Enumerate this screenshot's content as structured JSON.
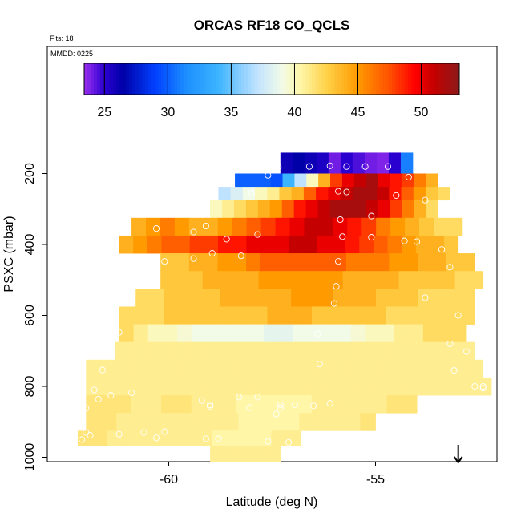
{
  "chart_data": {
    "type": "heatmap",
    "title": "ORCAS RF18 CO_QCLS",
    "flights_label": "Flts: 18",
    "date_label": "MMDD: 0225",
    "xlabel": "Latitude (deg N)",
    "ylabel": "PSXC (mbar)",
    "xlim": [
      -63,
      -52
    ],
    "ylim": [
      1000,
      100
    ],
    "x_ticks": [
      -60,
      -55
    ],
    "y_ticks": [
      200,
      400,
      600,
      800,
      1000
    ],
    "colorbar": {
      "range": [
        23.4,
        53
      ],
      "ticks": [
        25,
        30,
        35,
        40,
        45,
        50
      ],
      "stops": [
        {
          "v": 23.4,
          "c": "#9b2ff0"
        },
        {
          "v": 25,
          "c": "#2a00d0"
        },
        {
          "v": 26.5,
          "c": "#0000a8"
        },
        {
          "v": 29,
          "c": "#0040ff"
        },
        {
          "v": 31.5,
          "c": "#1e90ff"
        },
        {
          "v": 34,
          "c": "#3cb4ff"
        },
        {
          "v": 37,
          "c": "#bfe2ff"
        },
        {
          "v": 39,
          "c": "#f2fbe8"
        },
        {
          "v": 40.5,
          "c": "#fff6a8"
        },
        {
          "v": 42.5,
          "c": "#ffd24a"
        },
        {
          "v": 45,
          "c": "#ff9a00"
        },
        {
          "v": 47.5,
          "c": "#ff5000"
        },
        {
          "v": 49.5,
          "c": "#ff0000"
        },
        {
          "v": 51,
          "c": "#c40000"
        },
        {
          "v": 53,
          "c": "#8b1a1a"
        }
      ]
    },
    "arrow_latitude": -53.0,
    "bins": [
      {
        "p": 175,
        "lat_min": -57.3,
        "lat_max": -54.1,
        "values": [
          26,
          26.5,
          26,
          25.5,
          24,
          25,
          24.5,
          24,
          23.8,
          25,
          31
        ]
      },
      {
        "p": 225,
        "lat_min": -58.4,
        "lat_max": -53.5,
        "values": [
          30,
          30,
          30,
          29.5,
          34,
          37,
          40,
          44,
          48,
          50,
          51,
          52,
          50,
          49,
          48,
          46,
          44
        ]
      },
      {
        "p": 250,
        "lat_min": -58.8,
        "lat_max": -53.2,
        "values": [
          37,
          38,
          39,
          40,
          41,
          43,
          44,
          47,
          49,
          50,
          51,
          52,
          52,
          51,
          49,
          47,
          45,
          43,
          42
        ]
      },
      {
        "p": 300,
        "lat_min": -59.0,
        "lat_max": -53.5,
        "values": [
          40,
          41,
          42,
          43,
          44,
          45,
          47,
          49,
          50,
          51,
          52,
          52,
          52,
          51,
          50,
          48,
          46,
          44,
          42
        ]
      },
      {
        "p": 350,
        "lat_min": -60.9,
        "lat_max": -52.9,
        "values": [
          44,
          45,
          46,
          45,
          44,
          44,
          45,
          46,
          47,
          48,
          49,
          50,
          51,
          51,
          50,
          49,
          48,
          46,
          45,
          44,
          43,
          42,
          42
        ]
      },
      {
        "p": 400,
        "lat_min": -61.2,
        "lat_max": -53.0,
        "values": [
          44,
          45,
          46,
          47,
          47,
          48,
          48,
          49,
          49,
          50,
          50,
          50,
          51,
          51,
          50,
          50,
          49,
          48,
          47,
          46,
          45,
          44,
          44,
          43
        ]
      },
      {
        "p": 450,
        "lat_min": -60.2,
        "lat_max": -52.6,
        "values": [
          43,
          43,
          44,
          44,
          45,
          45,
          46,
          47,
          47,
          47,
          47,
          47,
          47,
          46,
          46,
          46,
          45,
          45,
          44,
          44,
          43,
          43
        ]
      },
      {
        "p": 500,
        "lat_min": -60.2,
        "lat_max": -52.4,
        "values": [
          43,
          43,
          43,
          44,
          44,
          44,
          44,
          45,
          45,
          45,
          45,
          45,
          45,
          44,
          44,
          44,
          44,
          43,
          43,
          43,
          43,
          42,
          42
        ]
      },
      {
        "p": 550,
        "lat_min": -60.8,
        "lat_max": -52.6,
        "values": [
          42,
          42,
          43,
          43,
          43,
          43,
          44,
          44,
          44,
          44,
          44,
          45,
          45,
          45,
          44,
          44,
          44,
          43,
          43,
          43,
          42,
          42,
          42,
          42
        ]
      },
      {
        "p": 600,
        "lat_min": -61.2,
        "lat_max": -52.6,
        "values": [
          42,
          42,
          42,
          43,
          43,
          43,
          43,
          43,
          43,
          43,
          44,
          44,
          44,
          43,
          43,
          43,
          43,
          43,
          42,
          42,
          42,
          42,
          42,
          42
        ]
      },
      {
        "p": 650,
        "lat_min": -61.2,
        "lat_max": -52.8,
        "values": [
          42,
          41,
          40,
          40,
          39.5,
          39,
          39,
          39,
          39,
          39,
          38.5,
          38.5,
          39,
          39,
          39,
          39,
          39.5,
          40,
          40,
          41,
          41,
          42,
          42,
          42
        ]
      },
      {
        "p": 700,
        "lat_min": -61.3,
        "lat_max": -52.6,
        "values": [
          41,
          41,
          41,
          41,
          41,
          41,
          41,
          41,
          41,
          41,
          41,
          41,
          41,
          41,
          41,
          41,
          41,
          41,
          41,
          41,
          41,
          41,
          41,
          41
        ]
      },
      {
        "p": 750,
        "lat_min": -62.0,
        "lat_max": -52.4,
        "values": [
          41,
          41,
          41,
          41,
          41,
          41,
          41,
          41,
          41,
          41,
          41,
          41,
          41,
          41,
          41,
          41,
          41,
          41,
          41,
          41,
          41,
          41,
          41,
          41,
          41,
          41
        ]
      },
      {
        "p": 800,
        "lat_min": -62.0,
        "lat_max": -52.2,
        "values": [
          41,
          41,
          41,
          41,
          41,
          41,
          41,
          41,
          41,
          41,
          41,
          41,
          41,
          41,
          41,
          41,
          41,
          41,
          41,
          41,
          41,
          41,
          41,
          41,
          41,
          41,
          41
        ]
      },
      {
        "p": 850,
        "lat_min": -62.0,
        "lat_max": -54.0,
        "values": [
          41.5,
          41.5,
          41.5,
          41,
          41,
          41.5,
          41.5,
          41,
          41,
          41,
          40.5,
          40.5,
          40.5,
          40.5,
          40.5,
          41,
          41,
          41,
          41,
          41,
          41.5,
          41.5
        ]
      },
      {
        "p": 900,
        "lat_min": -62.0,
        "lat_max": -55.0,
        "values": [
          41.5,
          41.5,
          41,
          41,
          41,
          41,
          41,
          41,
          41,
          41,
          40.5,
          40.5,
          40.5,
          40.5,
          41,
          41,
          41,
          41,
          41.5
        ]
      },
      {
        "p": 950,
        "lat_min": -62.2,
        "lat_max": -56.8,
        "values": [
          41.5,
          41.5,
          41,
          41,
          41,
          41,
          41,
          41,
          41,
          40.5,
          40.5,
          40.5,
          40.5,
          41,
          41
        ]
      },
      {
        "p": 985,
        "lat_min": -59.0,
        "lat_max": -57.3,
        "values": [
          41,
          41,
          41,
          41,
          41
        ]
      }
    ],
    "points": [
      [
        -57.35,
        180
      ],
      [
        -56.6,
        180
      ],
      [
        -56.1,
        178
      ],
      [
        -55.7,
        180
      ],
      [
        -55.25,
        180
      ],
      [
        -54.7,
        180
      ],
      [
        -57.6,
        205
      ],
      [
        -54.2,
        210
      ],
      [
        -58.0,
        255
      ],
      [
        -55.9,
        250
      ],
      [
        -55.7,
        252
      ],
      [
        -54.5,
        262
      ],
      [
        -53.8,
        275
      ],
      [
        -53.1,
        300
      ],
      [
        -55.1,
        320
      ],
      [
        -55.85,
        330
      ],
      [
        -59.1,
        348
      ],
      [
        -60.3,
        355
      ],
      [
        -59.4,
        365
      ],
      [
        -57.85,
        372
      ],
      [
        -58.6,
        385
      ],
      [
        -55.8,
        378
      ],
      [
        -55.1,
        380
      ],
      [
        -54.3,
        390
      ],
      [
        -54.0,
        392
      ],
      [
        -53.4,
        414
      ],
      [
        -53.2,
        464
      ],
      [
        -58.95,
        425
      ],
      [
        -58.25,
        432
      ],
      [
        -59.4,
        440
      ],
      [
        -60.1,
        448
      ],
      [
        -55.9,
        448
      ],
      [
        -55.95,
        518
      ],
      [
        -61.0,
        550
      ],
      [
        -53.8,
        550
      ],
      [
        -56.0,
        566
      ],
      [
        -53.0,
        600
      ],
      [
        -61.2,
        648
      ],
      [
        -56.4,
        652
      ],
      [
        -52.5,
        648
      ],
      [
        -53.2,
        680
      ],
      [
        -52.8,
        702
      ],
      [
        -56.35,
        737
      ],
      [
        -61.6,
        754
      ],
      [
        -53.1,
        755
      ],
      [
        -52.6,
        800
      ],
      [
        -52.4,
        800
      ],
      [
        -52.4,
        805
      ],
      [
        -61.8,
        810
      ],
      [
        -61.4,
        825
      ],
      [
        -60.9,
        818
      ],
      [
        -61.7,
        836
      ],
      [
        -59.2,
        840
      ],
      [
        -59.0,
        852
      ],
      [
        -58.3,
        830
      ],
      [
        -57.85,
        830
      ],
      [
        -57.3,
        852
      ],
      [
        -56.95,
        852
      ],
      [
        -58.05,
        860
      ],
      [
        -57.3,
        860
      ],
      [
        -56.5,
        855
      ],
      [
        -56.1,
        848
      ],
      [
        -62.0,
        862
      ],
      [
        -59.0,
        856
      ],
      [
        -57.4,
        878
      ],
      [
        -61.9,
        938
      ],
      [
        -62.1,
        950
      ],
      [
        -62.0,
        930
      ],
      [
        -61.2,
        935
      ],
      [
        -60.6,
        930
      ],
      [
        -60.3,
        945
      ],
      [
        -60.1,
        928
      ],
      [
        -59.1,
        948
      ],
      [
        -58.8,
        948
      ],
      [
        -57.6,
        955
      ],
      [
        -57.1,
        958
      ]
    ]
  }
}
